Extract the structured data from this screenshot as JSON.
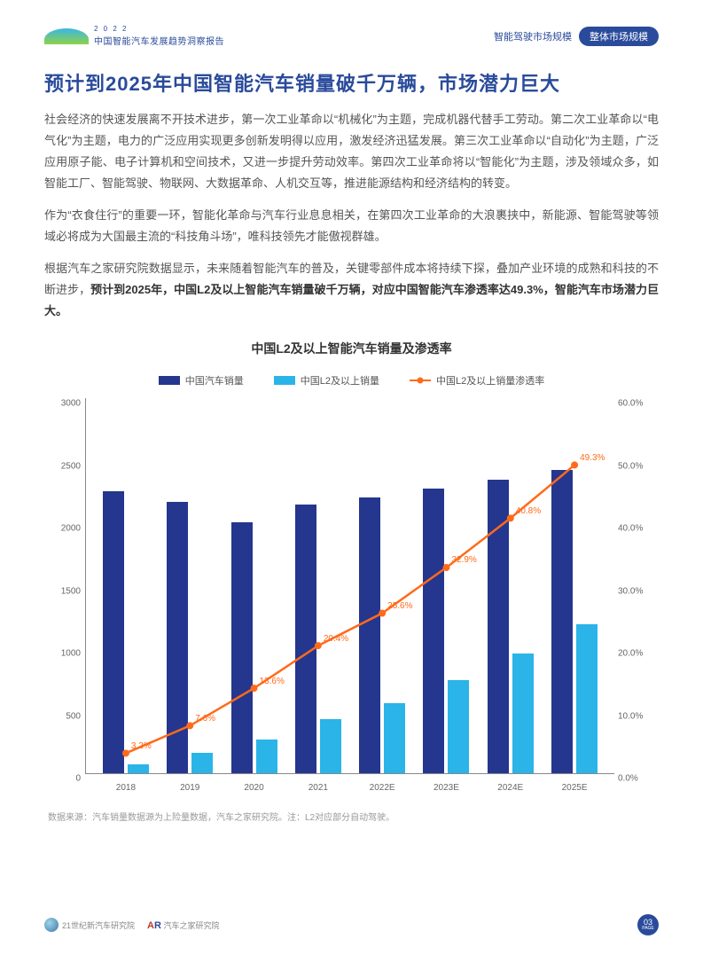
{
  "header": {
    "year": "2 0 2 2",
    "report_name": "中国智能汽车发展趋势洞察报告",
    "subnav": "智能驾驶市场规模",
    "badge": "整体市场规模"
  },
  "title": "预计到2025年中国智能汽车销量破千万辆，市场潜力巨大",
  "para1": "社会经济的快速发展离不开技术进步，第一次工业革命以“机械化”为主题，完成机器代替手工劳动。第二次工业革命以“电气化”为主题，电力的广泛应用实现更多创新发明得以应用，激发经济迅猛发展。第三次工业革命以“自动化”为主题，广泛应用原子能、电子计算机和空间技术，又进一步提升劳动效率。第四次工业革命将以“智能化”为主题，涉及领域众多，如智能工厂、智能驾驶、物联网、大数据革命、人机交互等，推进能源结构和经济结构的转变。",
  "para2": "作为“衣食住行”的重要一环，智能化革命与汽车行业息息相关，在第四次工业革命的大浪裹挟中，新能源、智能驾驶等领域必将成为大国最主流的“科技角斗场”，唯科技领先才能傲视群雄。",
  "para3a": "根据汽车之家研究院数据显示，未来随着智能汽车的普及，关键零部件成本将持续下探，叠加产业环境的成熟和科技的不断进步，",
  "para3b": "预计到2025年，中国L2及以上智能汽车销量破千万辆，对应中国智能汽车渗透率达49.3%，智能汽车市场潜力巨大。",
  "chart": {
    "title": "中国L2及以上智能汽车销量及渗透率",
    "legend": {
      "s1": "中国汽车销量",
      "s2": "中国L2及以上销量",
      "s3": "中国L2及以上销量渗透率"
    },
    "colors": {
      "bar1": "#25368e",
      "bar2": "#2ab4e8",
      "line": "#ff6a1a"
    },
    "categories": [
      "2018",
      "2019",
      "2020",
      "2021",
      "2022E",
      "2023E",
      "2024E",
      "2025E"
    ],
    "left_axis": {
      "max": 3000,
      "ticks": [
        0,
        500,
        1000,
        1500,
        2000,
        2500,
        3000
      ]
    },
    "right_axis": {
      "max": 60,
      "ticks": [
        "0.0%",
        "10.0%",
        "20.0%",
        "30.0%",
        "40.0%",
        "50.0%",
        "60.0%"
      ]
    },
    "bar1_values": [
      2260,
      2170,
      2010,
      2150,
      2210,
      2280,
      2350,
      2430
    ],
    "bar2_values": [
      72,
      165,
      273,
      439,
      566,
      750,
      959,
      1198
    ],
    "line_values": [
      3.2,
      7.6,
      13.6,
      20.4,
      25.6,
      32.9,
      40.8,
      49.3
    ],
    "line_labels": [
      "3.2%",
      "7.6%",
      "13.6%",
      "20.4%",
      "25.6%",
      "32.9%",
      "40.8%",
      "49.3%"
    ]
  },
  "source": "数据来源：汽车销量数据源为上险量数据，汽车之家研究院。注：L2对应部分自动驾驶。",
  "footer": {
    "logo1": "21世纪新汽车研究院",
    "logo2": "汽车之家研究院",
    "page": "03",
    "page_label": "PAGE"
  }
}
